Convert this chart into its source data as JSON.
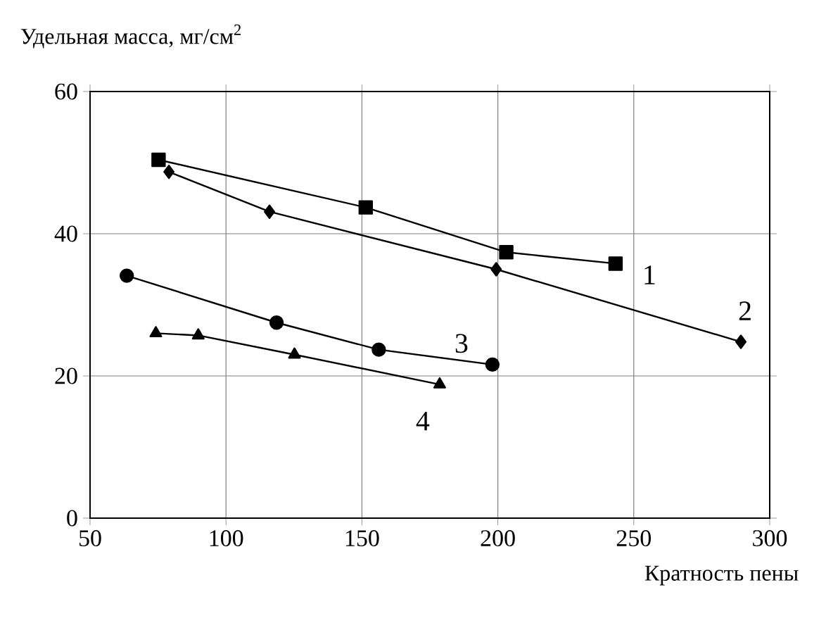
{
  "chart_data": {
    "type": "line",
    "xlabel": "Кратность пены",
    "ylabel": "Удельная масса, мг/см$^{2}$",
    "xlim": [
      50,
      300
    ],
    "xticks": [
      50,
      100,
      150,
      200,
      250,
      300
    ],
    "ylim": [
      0,
      60
    ],
    "yticks": [
      0,
      20,
      40,
      60
    ],
    "grid": true,
    "legend": false,
    "series": [
      {
        "name": "1",
        "color": "#000000",
        "marker": "square",
        "x": [
          75.2,
          151.4,
          203.1,
          243.3
        ],
        "values": [
          50.4,
          43.7,
          37.4,
          35.8
        ]
      },
      {
        "name": "2",
        "color": "#000000",
        "marker": "diamond",
        "x": [
          79,
          116,
          199.4,
          289.4
        ],
        "values": [
          48.7,
          43.1,
          35.0,
          24.8
        ]
      },
      {
        "name": "3",
        "color": "#000000",
        "marker": "circle",
        "x": [
          63.5,
          118.6,
          156.2,
          198
        ],
        "values": [
          34.1,
          27.5,
          23.7,
          21.6
        ]
      },
      {
        "name": "4",
        "color": "#000000",
        "marker": "triangle",
        "x": [
          74.2,
          89.8,
          125.2,
          178.6
        ],
        "values": [
          26.0,
          25.7,
          23.0,
          18.8
        ]
      }
    ]
  }
}
